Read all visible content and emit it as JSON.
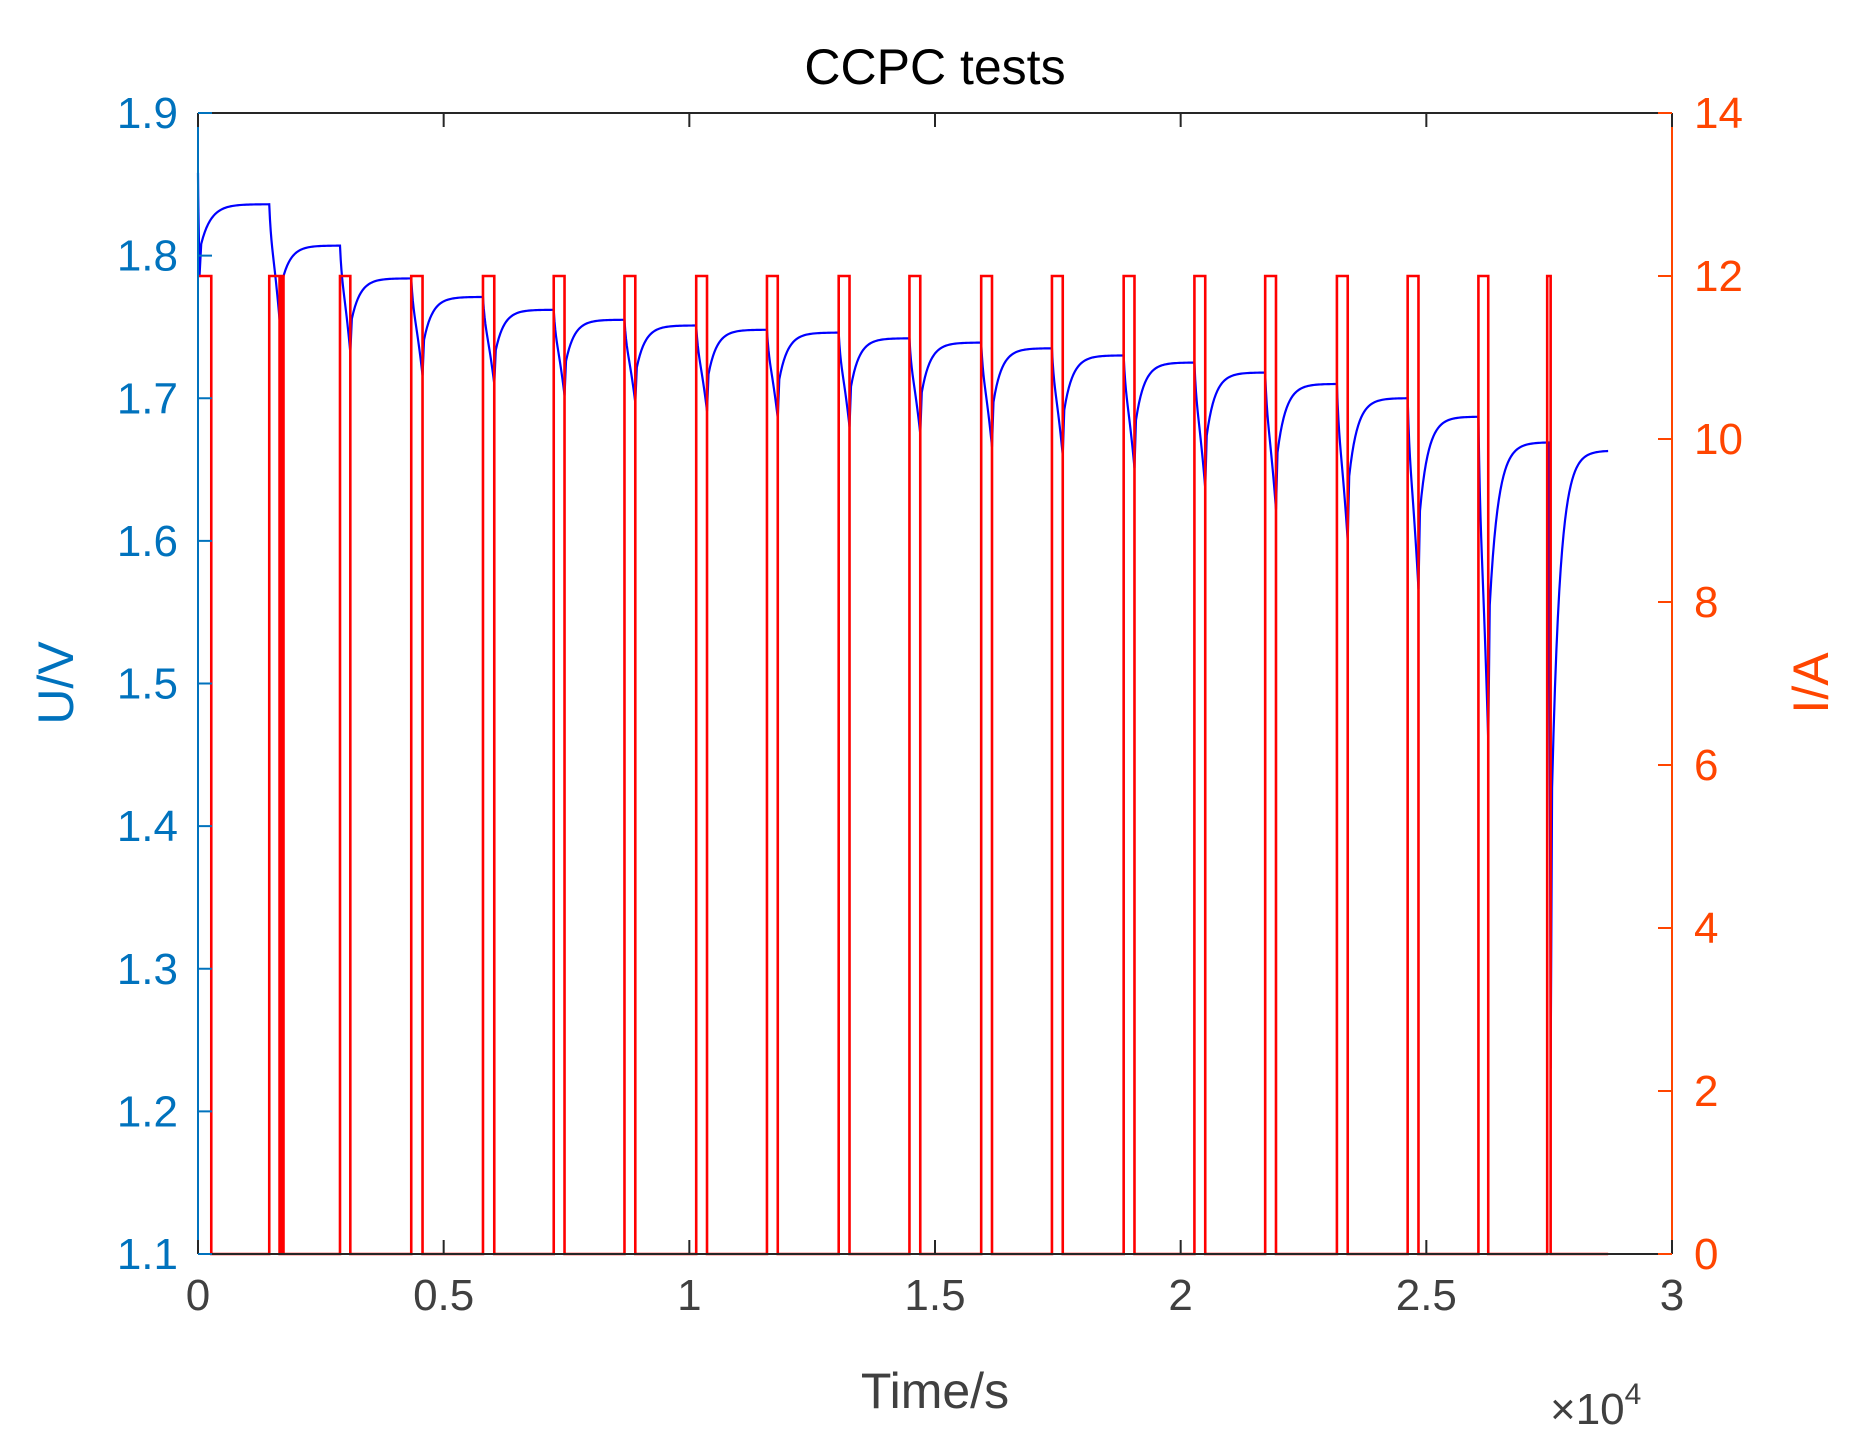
{
  "chart_data": {
    "type": "line",
    "title": "CCPC tests",
    "xlabel": "Time/s",
    "ylabel_left": "U/V",
    "ylabel_right": "I/A",
    "x_exponent_label": "×10",
    "x_exponent_power": "4",
    "x_scale": 10000,
    "xlim": [
      0,
      3
    ],
    "ylim_left": [
      1.1,
      1.9
    ],
    "ylim_right": [
      0,
      14
    ],
    "xticks": [
      "0",
      "0.5",
      "1",
      "1.5",
      "2",
      "2.5",
      "3"
    ],
    "xtick_values": [
      0,
      0.5,
      1,
      1.5,
      2,
      2.5,
      3
    ],
    "yticks_left": [
      "1.1",
      "1.2",
      "1.3",
      "1.4",
      "1.5",
      "1.6",
      "1.7",
      "1.8",
      "1.9"
    ],
    "ytick_values_left": [
      1.1,
      1.2,
      1.3,
      1.4,
      1.5,
      1.6,
      1.7,
      1.8,
      1.9
    ],
    "yticks_right": [
      "0",
      "2",
      "4",
      "6",
      "8",
      "10",
      "12",
      "14"
    ],
    "ytick_values_right": [
      0,
      2,
      4,
      6,
      8,
      10,
      12,
      14
    ],
    "colors": {
      "left_axis": "#0072BD",
      "right_axis": "#FF4500",
      "voltage_line": "#0000FF",
      "current_line": "#FF0000",
      "frame": "#262626"
    },
    "series": [
      {
        "name": "Voltage",
        "axis": "left",
        "pulses": [
          {
            "start": 0.0,
            "end": 0.003,
            "pre_rest": 1.858,
            "bottom": 1.785,
            "rest_top": 1.836
          },
          {
            "start": 0.145,
            "end": 0.166,
            "pre_rest": 1.836,
            "bottom": 1.755,
            "rest_top": 1.807
          },
          {
            "start": 0.289,
            "end": 0.31,
            "pre_rest": 1.807,
            "bottom": 1.732,
            "rest_top": 1.784
          },
          {
            "start": 0.434,
            "end": 0.457,
            "pre_rest": 1.784,
            "bottom": 1.716,
            "rest_top": 1.771
          },
          {
            "start": 0.58,
            "end": 0.603,
            "pre_rest": 1.771,
            "bottom": 1.71,
            "rest_top": 1.762
          },
          {
            "start": 0.724,
            "end": 0.746,
            "pre_rest": 1.762,
            "bottom": 1.702,
            "rest_top": 1.755
          },
          {
            "start": 0.868,
            "end": 0.89,
            "pre_rest": 1.755,
            "bottom": 1.697,
            "rest_top": 1.751
          },
          {
            "start": 1.014,
            "end": 1.036,
            "pre_rest": 1.751,
            "bottom": 1.691,
            "rest_top": 1.748
          },
          {
            "start": 1.158,
            "end": 1.18,
            "pre_rest": 1.748,
            "bottom": 1.686,
            "rest_top": 1.746
          },
          {
            "start": 1.304,
            "end": 1.326,
            "pre_rest": 1.746,
            "bottom": 1.68,
            "rest_top": 1.742
          },
          {
            "start": 1.448,
            "end": 1.47,
            "pre_rest": 1.742,
            "bottom": 1.675,
            "rest_top": 1.739
          },
          {
            "start": 1.594,
            "end": 1.616,
            "pre_rest": 1.739,
            "bottom": 1.666,
            "rest_top": 1.735
          },
          {
            "start": 1.738,
            "end": 1.76,
            "pre_rest": 1.735,
            "bottom": 1.66,
            "rest_top": 1.73
          },
          {
            "start": 1.884,
            "end": 1.906,
            "pre_rest": 1.73,
            "bottom": 1.651,
            "rest_top": 1.725
          },
          {
            "start": 2.028,
            "end": 2.05,
            "pre_rest": 1.725,
            "bottom": 1.637,
            "rest_top": 1.718
          },
          {
            "start": 2.172,
            "end": 2.194,
            "pre_rest": 1.718,
            "bottom": 1.622,
            "rest_top": 1.71
          },
          {
            "start": 2.318,
            "end": 2.34,
            "pre_rest": 1.71,
            "bottom": 1.6,
            "rest_top": 1.7
          },
          {
            "start": 2.462,
            "end": 2.484,
            "pre_rest": 1.7,
            "bottom": 1.566,
            "rest_top": 1.687
          },
          {
            "start": 2.606,
            "end": 2.626,
            "pre_rest": 1.687,
            "bottom": 1.46,
            "rest_top": 1.669
          },
          {
            "start": 2.75,
            "end": 2.753,
            "pre_rest": 1.669,
            "bottom": 1.23,
            "rest_top": 1.663
          }
        ],
        "x_end": 2.87
      },
      {
        "name": "Current",
        "axis": "right",
        "on_level": 12,
        "off_level": 0,
        "x_end": 2.87,
        "pulses": [
          [
            0.0,
            0.027
          ],
          [
            0.145,
            0.166
          ],
          [
            0.171,
            0.174
          ],
          [
            0.289,
            0.31
          ],
          [
            0.434,
            0.457
          ],
          [
            0.58,
            0.603
          ],
          [
            0.724,
            0.746
          ],
          [
            0.868,
            0.89
          ],
          [
            1.014,
            1.036
          ],
          [
            1.158,
            1.18
          ],
          [
            1.304,
            1.326
          ],
          [
            1.448,
            1.47
          ],
          [
            1.594,
            1.616
          ],
          [
            1.738,
            1.76
          ],
          [
            1.884,
            1.906
          ],
          [
            2.028,
            2.05
          ],
          [
            2.172,
            2.194
          ],
          [
            2.318,
            2.34
          ],
          [
            2.462,
            2.484
          ],
          [
            2.606,
            2.626
          ],
          [
            2.746,
            2.753
          ]
        ]
      }
    ]
  }
}
